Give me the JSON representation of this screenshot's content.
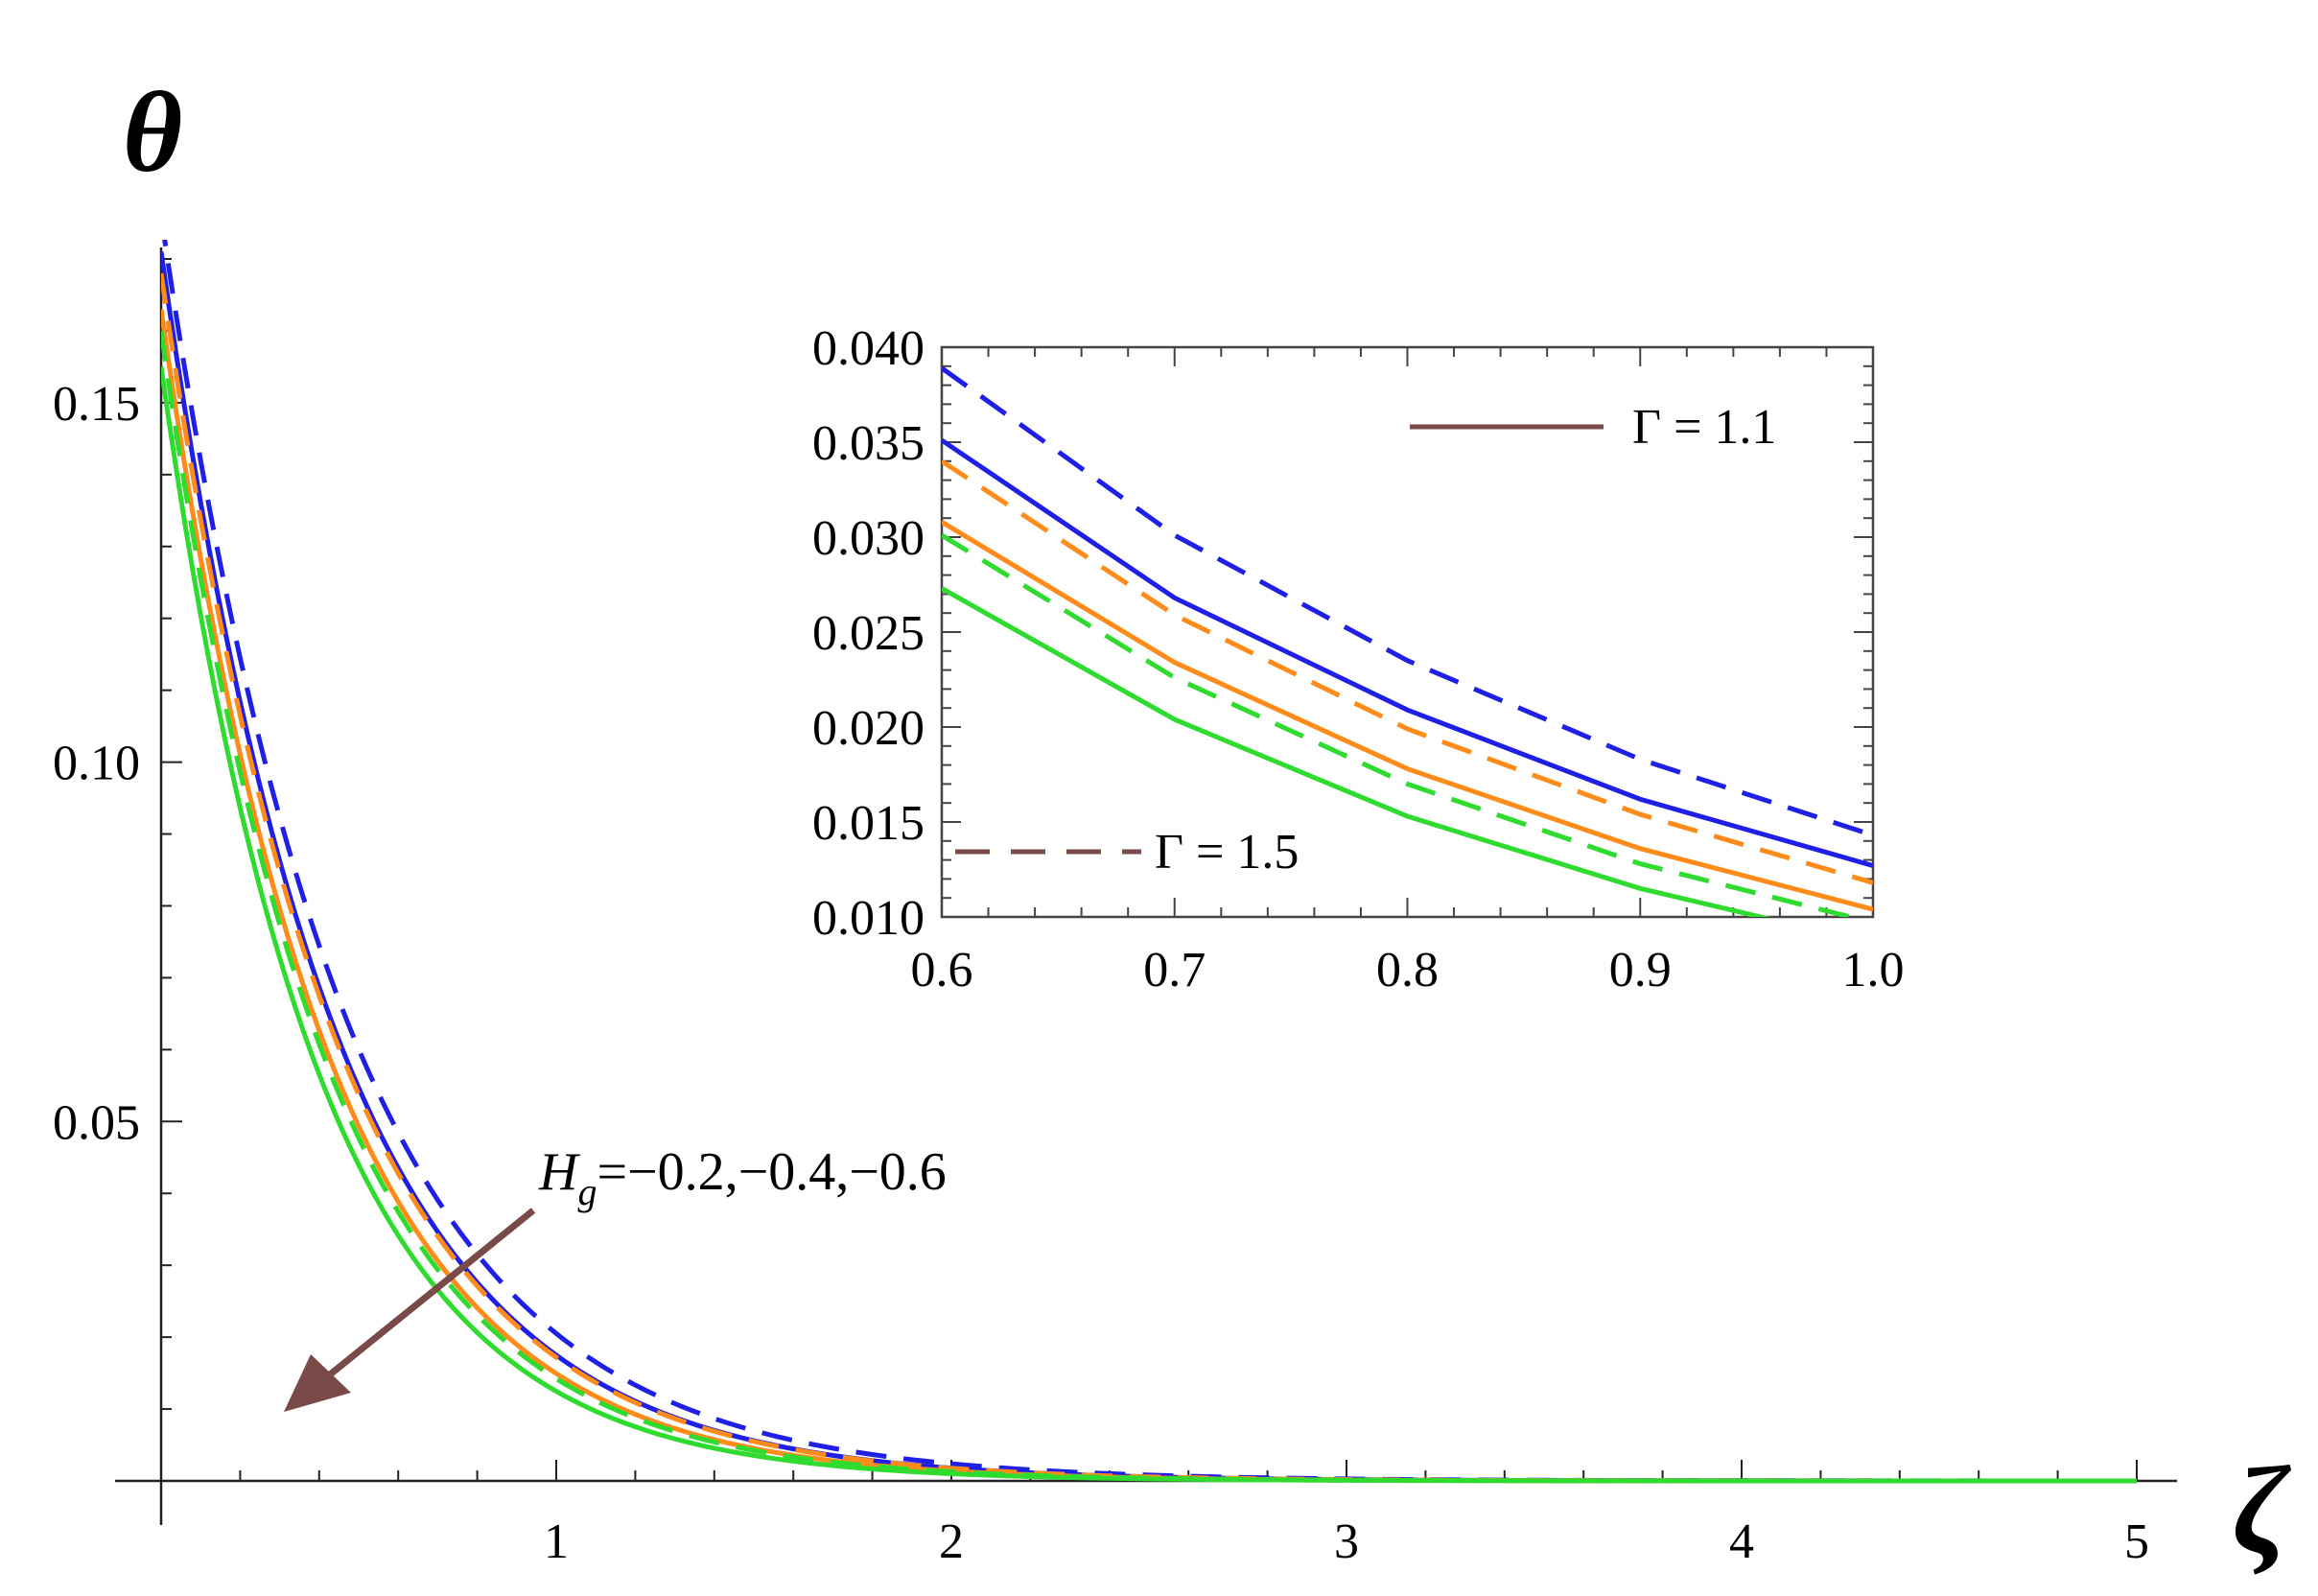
{
  "chart_data": [
    {
      "type": "line",
      "ylabel": "θ",
      "xlabel": "ζ",
      "xlim": [
        0,
        5
      ],
      "ylim": [
        0,
        0.17
      ],
      "x_ticks": [
        1,
        2,
        3,
        4,
        5
      ],
      "y_ticks": [
        0.05,
        0.1,
        0.15
      ],
      "x_tick_labels": [
        "1",
        "2",
        "3",
        "4",
        "5"
      ],
      "y_tick_labels": [
        "0.05",
        "0.10",
        "0.15"
      ],
      "annotation": {
        "symbol": "H",
        "subscript": "g",
        "values": "=−0.2,−0.4,−0.6",
        "direction": "decreasing"
      },
      "series": [
        {
          "line_style": "dashed",
          "color": "#1f1fe6",
          "theta0": 0.176,
          "decay": 2.15
        },
        {
          "line_style": "solid",
          "color": "#1f1fe6",
          "theta0": 0.171,
          "decay": 2.28
        },
        {
          "line_style": "dashed",
          "color": "#ff8c1a",
          "theta0": 0.168,
          "decay": 2.28
        },
        {
          "line_style": "solid",
          "color": "#ff8c1a",
          "theta0": 0.163,
          "decay": 2.39
        },
        {
          "line_style": "dashed",
          "color": "#2edb2e",
          "theta0": 0.16,
          "decay": 2.42
        },
        {
          "line_style": "solid",
          "color": "#2edb2e",
          "theta0": 0.155,
          "decay": 2.52
        }
      ]
    },
    {
      "type": "line",
      "role": "inset",
      "xlim": [
        0.6,
        1.0
      ],
      "ylim": [
        0.01,
        0.04
      ],
      "x_ticks": [
        0.6,
        0.7,
        0.8,
        0.9,
        1.0
      ],
      "y_ticks": [
        0.01,
        0.015,
        0.02,
        0.025,
        0.03,
        0.035,
        0.04
      ],
      "x_tick_labels": [
        "0.6",
        "0.7",
        "0.8",
        "0.9",
        "1.0"
      ],
      "y_tick_labels": [
        "0.010",
        "0.015",
        "0.020",
        "0.025",
        "0.030",
        "0.035",
        "0.040"
      ],
      "legend": [
        {
          "label": "Γ = 1.1",
          "line_style": "solid",
          "color": "#7a4a48"
        },
        {
          "label": "Γ = 1.5",
          "line_style": "dashed",
          "color": "#7a4a48"
        }
      ],
      "x": [
        0.6,
        0.7,
        0.8,
        0.9,
        1.0
      ],
      "series": [
        {
          "line_style": "dashed",
          "color": "#1f1fe6",
          "y": [
            0.0389,
            0.0301,
            0.0235,
            0.0183,
            0.0143
          ]
        },
        {
          "line_style": "solid",
          "color": "#1f1fe6",
          "y": [
            0.0351,
            0.0268,
            0.0209,
            0.0162,
            0.0127
          ]
        },
        {
          "line_style": "dashed",
          "color": "#ff8c1a",
          "y": [
            0.034,
            0.0259,
            0.0199,
            0.0154,
            0.0118
          ]
        },
        {
          "line_style": "solid",
          "color": "#ff8c1a",
          "y": [
            0.0308,
            0.0234,
            0.0178,
            0.0136,
            0.0104
          ]
        },
        {
          "line_style": "dashed",
          "color": "#2edb2e",
          "y": [
            0.0301,
            0.0226,
            0.017,
            0.0128,
            0.0097
          ]
        },
        {
          "line_style": "solid",
          "color": "#2edb2e",
          "y": [
            0.0273,
            0.0204,
            0.0153,
            0.0115,
            0.0086
          ]
        }
      ]
    }
  ]
}
